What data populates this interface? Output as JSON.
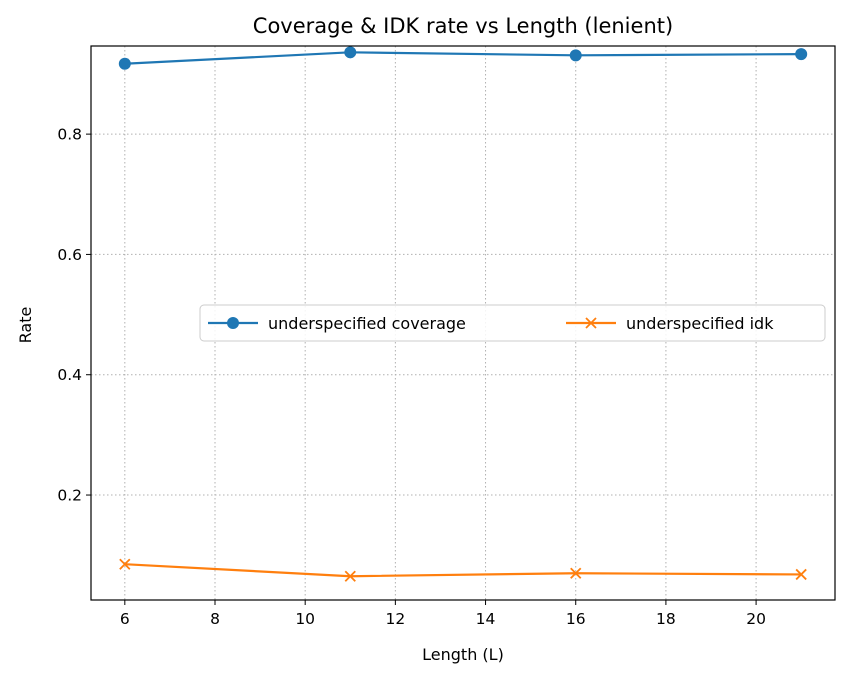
{
  "chart_data": {
    "type": "line",
    "title": "Coverage & IDK rate vs Length (lenient)",
    "xlabel": "Length (L)",
    "ylabel": "Rate",
    "x": [
      6,
      11,
      16,
      21
    ],
    "xlim": [
      5.25,
      21.75
    ],
    "ylim": [
      0.0255,
      0.9465
    ],
    "xticks": [
      6,
      8,
      10,
      12,
      14,
      16,
      18,
      20
    ],
    "yticks": [
      0.2,
      0.4,
      0.6,
      0.8
    ],
    "xtick_labels": [
      "6",
      "8",
      "10",
      "12",
      "14",
      "16",
      "18",
      "20"
    ],
    "ytick_labels": [
      "0.2",
      "0.4",
      "0.6",
      "0.8"
    ],
    "grid": true,
    "legend_position": "center-right",
    "series": [
      {
        "name": "underspecified coverage",
        "values": [
          0.917,
          0.936,
          0.931,
          0.933
        ],
        "color": "#1f77b4",
        "marker": "circle"
      },
      {
        "name": "underspecified idk",
        "values": [
          0.085,
          0.065,
          0.07,
          0.068
        ],
        "color": "#ff7f0e",
        "marker": "x"
      }
    ]
  }
}
